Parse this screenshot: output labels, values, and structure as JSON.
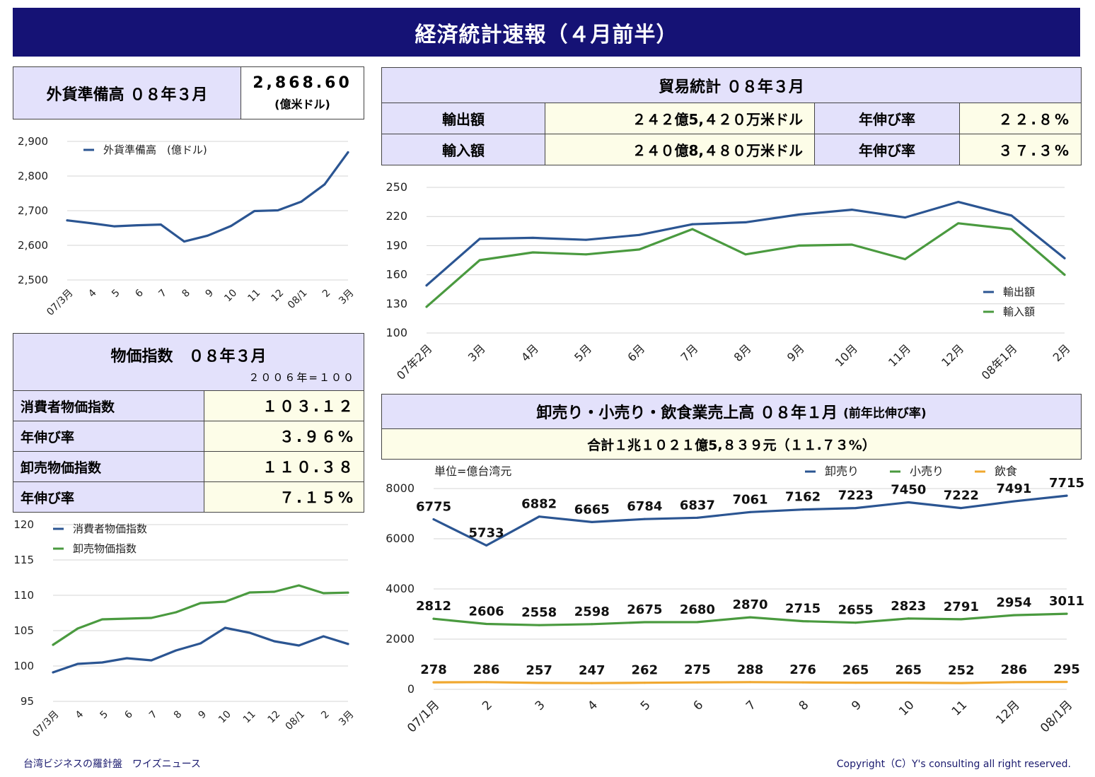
{
  "header": {
    "title": "経済統計速報（４月前半）"
  },
  "forex": {
    "label": "外貨準備高 ０８年３月",
    "value": "2,868.60",
    "unit": "(億米ドル)"
  },
  "trade": {
    "title": "貿易統計 ０８年３月",
    "rows": [
      {
        "label": "輸出額",
        "value": "２４２億5,４２０万米ドル",
        "growth_label": "年伸び率",
        "growth": "２２.８%"
      },
      {
        "label": "輸入額",
        "value": "２４０億8,４８０万米ドル",
        "growth_label": "年伸び率",
        "growth": "３７.３%"
      }
    ]
  },
  "prices": {
    "title": "物価指数　０８年３月",
    "base": "２００６年=１００",
    "rows": [
      {
        "label": "消費者物価指数",
        "value": "１０３.１２"
      },
      {
        "label": "年伸び率",
        "value": "３.９６%"
      },
      {
        "label": "卸売物価指数",
        "value": "１１０.３８"
      },
      {
        "label": "年伸び率",
        "value": "７.１５%"
      }
    ]
  },
  "sales": {
    "title": "卸売り・小売り・飲食業売上高 ０８年１月",
    "title_note": "(前年比伸び率)",
    "total": "合計１兆１０２１億5,８３９元（１１.７３%）"
  },
  "colors": {
    "blue": "#2b5592",
    "green": "#4a9a3f",
    "orange": "#f0a830",
    "header_bg": "#151275"
  },
  "chart_data": [
    {
      "id": "forex",
      "type": "line",
      "categories": [
        "07/3月",
        "4",
        "5",
        "6",
        "7",
        "8",
        "9",
        "10",
        "11",
        "12",
        "08/1",
        "2",
        "3月"
      ],
      "series": [
        {
          "name": "外貨準備高　(億ドル)",
          "color": "#2b5592",
          "values": [
            2672,
            2664,
            2655,
            2658,
            2660,
            2611,
            2628,
            2656,
            2699,
            2701,
            2726,
            2776,
            2868.6
          ]
        }
      ],
      "ylim": [
        2500,
        2900
      ],
      "yticks": [
        "2,500",
        "2,600",
        "2,700",
        "2,800",
        "2,900"
      ],
      "grid": true,
      "legend": "top-left"
    },
    {
      "id": "trade",
      "type": "line",
      "categories": [
        "07年2月",
        "3月",
        "4月",
        "5月",
        "6月",
        "7月",
        "8月",
        "9月",
        "10月",
        "11月",
        "12月",
        "08年1月",
        "2月"
      ],
      "series": [
        {
          "name": "輸出額",
          "color": "#2b5592",
          "values": [
            149,
            197,
            198,
            196,
            201,
            212,
            214,
            222,
            227,
            219,
            235,
            221,
            177
          ]
        },
        {
          "name": "輸入額",
          "color": "#4a9a3f",
          "values": [
            127,
            175,
            183,
            181,
            186,
            207,
            181,
            190,
            191,
            176,
            213,
            207,
            160
          ]
        }
      ],
      "ylim": [
        100,
        250
      ],
      "yticks": [
        "100",
        "130",
        "160",
        "190",
        "220",
        "250"
      ],
      "grid": true,
      "legend": "bottom-right"
    },
    {
      "id": "prices",
      "type": "line",
      "categories": [
        "07/3月",
        "4",
        "5",
        "6",
        "7",
        "8",
        "9",
        "10",
        "11",
        "12",
        "08/1",
        "2",
        "3月"
      ],
      "series": [
        {
          "name": "消費者物価指数",
          "color": "#2b5592",
          "values": [
            99.1,
            100.3,
            100.5,
            101.1,
            100.8,
            102.2,
            103.2,
            105.4,
            104.7,
            103.5,
            102.9,
            104.2,
            103.12
          ]
        },
        {
          "name": "卸売物価指数",
          "color": "#4a9a3f",
          "values": [
            103.0,
            105.3,
            106.6,
            106.7,
            106.8,
            107.6,
            108.9,
            109.1,
            110.4,
            110.5,
            111.4,
            110.3,
            110.38
          ]
        }
      ],
      "ylim": [
        95,
        120
      ],
      "yticks": [
        "95",
        "100",
        "105",
        "110",
        "115",
        "120"
      ],
      "grid": true,
      "legend": "top-left"
    },
    {
      "id": "sales",
      "type": "line",
      "unit_note": "単位=億台湾元",
      "categories": [
        "07/1月",
        "2",
        "3",
        "4",
        "5",
        "6",
        "7",
        "8",
        "9",
        "10",
        "11",
        "12月",
        "08/1月"
      ],
      "series": [
        {
          "name": "卸売り",
          "color": "#2b5592",
          "values": [
            6775,
            5733,
            6882,
            6665,
            6784,
            6837,
            7061,
            7162,
            7223,
            7450,
            7222,
            7491,
            7715
          ]
        },
        {
          "name": "小売り",
          "color": "#4a9a3f",
          "values": [
            2812,
            2606,
            2558,
            2598,
            2675,
            2680,
            2870,
            2715,
            2655,
            2823,
            2791,
            2954,
            3011
          ]
        },
        {
          "name": "飲食",
          "color": "#f0a830",
          "values": [
            278,
            286,
            257,
            247,
            262,
            275,
            288,
            276,
            265,
            265,
            252,
            286,
            295
          ]
        }
      ],
      "ylim": [
        0,
        8000
      ],
      "yticks": [
        "0",
        "2000",
        "4000",
        "6000",
        "8000"
      ],
      "data_labels": true,
      "grid": true,
      "legend": "top-right"
    }
  ],
  "footer": {
    "left": "台湾ビジネスの羅針盤　ワイズニュース",
    "right": "Copyright（C）Y's consulting all right reserved."
  }
}
